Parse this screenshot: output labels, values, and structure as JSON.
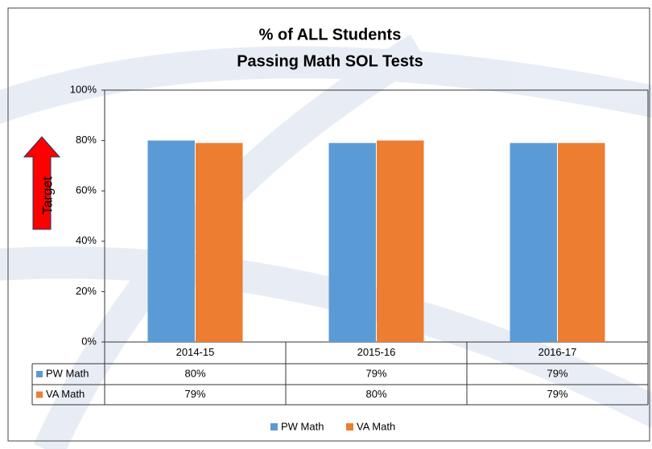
{
  "chart_data": {
    "type": "bar",
    "title": [
      "% of ALL Students",
      "Passing Math SOL Tests"
    ],
    "annotation": "Target",
    "categories": [
      "2014-15",
      "2015-16",
      "2016-17"
    ],
    "series": [
      {
        "name": "PW Math",
        "color": "#5b9bd5",
        "values": [
          80,
          79,
          79
        ],
        "value_labels": [
          "80%",
          "79%",
          "79%"
        ]
      },
      {
        "name": "VA Math",
        "color": "#ed7d31",
        "values": [
          79,
          80,
          79
        ],
        "value_labels": [
          "79%",
          "80%",
          "79%"
        ]
      }
    ],
    "ylim": [
      0,
      100
    ],
    "yticks": [
      {
        "value": 0,
        "label": "0%"
      },
      {
        "value": 20,
        "label": "20%"
      },
      {
        "value": 40,
        "label": "40%"
      },
      {
        "value": 60,
        "label": "60%"
      },
      {
        "value": 80,
        "label": "80%"
      },
      {
        "value": 100,
        "label": "100%"
      }
    ],
    "grid": false,
    "legend": "bottom"
  }
}
